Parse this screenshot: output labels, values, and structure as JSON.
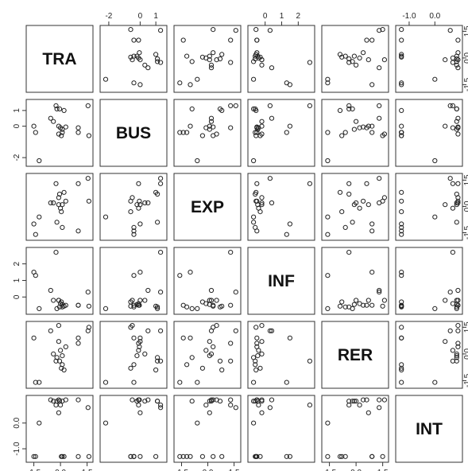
{
  "chart_data": {
    "type": "scatter-matrix",
    "variables": [
      "TRA",
      "BUS",
      "EXP",
      "INF",
      "RER",
      "INT"
    ],
    "ranges": {
      "TRA": [
        -1.75,
        1.65
      ],
      "BUS": [
        -2.35,
        1.5
      ],
      "EXP": [
        -1.75,
        1.7
      ],
      "INF": [
        -0.85,
        2.8
      ],
      "RER": [
        -1.75,
        1.65
      ],
      "INT": [
        -1.4,
        0.95
      ]
    },
    "tick_values": {
      "TRA": [
        -1.5,
        0.0,
        1.5
      ],
      "BUS": [
        -2,
        0,
        1
      ],
      "EXP": [
        -1.5,
        0.0,
        1.5
      ],
      "INF": [
        0,
        1,
        2
      ],
      "RER": [
        -1.5,
        0.0,
        1.5
      ],
      "INT": [
        -1.0,
        0.0
      ]
    },
    "tick_labels": {
      "TRA": [
        "-1.5",
        "0.0",
        "1.5"
      ],
      "BUS": [
        "-2",
        "0",
        "1"
      ],
      "EXP": [
        "-1.5",
        "0.0",
        "1.5"
      ],
      "INF": [
        "0",
        "1",
        "2"
      ],
      "RER": [
        "-1.5",
        "0.0",
        "1.5"
      ],
      "INT": [
        "-1.0",
        "0.0"
      ]
    },
    "axes": {
      "top": [
        "BUS",
        "INF",
        "INT"
      ],
      "bottom": [
        "TRA",
        "EXP",
        "RER"
      ],
      "left": [
        "BUS",
        "INF",
        "INT"
      ],
      "right": [
        "TRA",
        "EXP",
        "RER"
      ]
    },
    "observations": [
      {
        "TRA": -0.55,
        "BUS": 0.5,
        "EXP": 0.2,
        "INF": 0.4,
        "RER": 1.3,
        "INT": 0.9
      },
      {
        "TRA": -0.4,
        "BUS": 0.3,
        "EXP": 0.2,
        "INF": -0.2,
        "RER": 0.0,
        "INT": 0.85
      },
      {
        "TRA": -0.25,
        "BUS": 1.3,
        "EXP": 1.3,
        "INF": 2.7,
        "RER": -0.4,
        "INT": 0.7
      },
      {
        "TRA": -0.1,
        "BUS": 0.0,
        "EXP": 0.1,
        "INF": -0.2,
        "RER": 0.7,
        "INT": 0.4
      },
      {
        "TRA": 0.0,
        "BUS": -0.1,
        "EXP": -0.1,
        "INF": -0.4,
        "RER": 0.2,
        "INT": 0.7
      },
      {
        "TRA": 0.1,
        "BUS": -0.2,
        "EXP": 0.1,
        "INF": -0.45,
        "RER": -0.1,
        "INT": 0.85
      },
      {
        "TRA": 0.3,
        "BUS": -0.05,
        "EXP": 0.3,
        "INF": -0.5,
        "RER": 0.4,
        "INT": 0.9
      },
      {
        "TRA": 1.0,
        "BUS": -0.1,
        "EXP": 1.3,
        "INF": -0.5,
        "RER": 0.6,
        "INT": 0.9
      },
      {
        "TRA": 1.55,
        "BUS": 1.3,
        "EXP": 1.6,
        "INF": 0.3,
        "RER": 1.3,
        "INT": 0.6
      },
      {
        "TRA": -1.5,
        "BUS": 0.0,
        "EXP": -1.0,
        "INF": 1.5,
        "RER": 0.9,
        "INT": -1.3
      },
      {
        "TRA": -1.4,
        "BUS": -0.4,
        "EXP": -1.6,
        "INF": 1.3,
        "RER": -1.6,
        "INT": -1.3
      },
      {
        "TRA": -0.1,
        "BUS": -0.5,
        "EXP": 0.5,
        "INF": -0.2,
        "RER": 1.6,
        "INT": 0.9
      },
      {
        "TRA": 0.05,
        "BUS": -0.6,
        "EXP": -0.3,
        "INF": -0.3,
        "RER": -0.8,
        "INT": -1.3
      },
      {
        "TRA": 0.1,
        "BUS": -0.4,
        "EXP": -1.2,
        "INF": -0.6,
        "RER": -0.6,
        "INT": -1.3
      },
      {
        "TRA": 0.2,
        "BUS": 1.0,
        "EXP": 0.8,
        "INF": -0.55,
        "RER": -0.9,
        "INT": -1.3
      },
      {
        "TRA": 1.0,
        "BUS": -0.4,
        "EXP": -1.4,
        "INF": -0.5,
        "RER": 0.9,
        "INT": -1.3
      },
      {
        "TRA": 1.6,
        "BUS": -0.6,
        "EXP": 0.3,
        "INF": -0.55,
        "RER": 1.5,
        "INT": -1.3
      },
      {
        "TRA": -1.2,
        "BUS": -2.2,
        "EXP": -0.6,
        "INF": -0.7,
        "RER": -1.6,
        "INT": 0.0
      },
      {
        "TRA": -0.2,
        "BUS": 1.1,
        "EXP": -0.9,
        "INF": -0.7,
        "RER": -0.2,
        "INT": 0.85
      },
      {
        "TRA": -0.05,
        "BUS": 1.1,
        "EXP": 0.7,
        "INF": -0.6,
        "RER": -0.4,
        "INT": 0.85
      }
    ]
  }
}
